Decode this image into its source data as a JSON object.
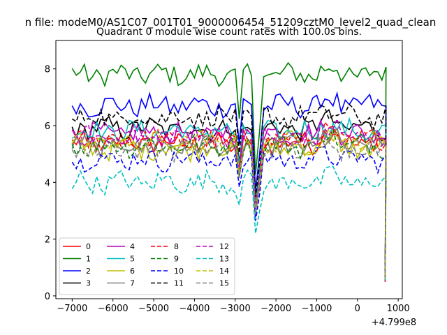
{
  "chart_data": {
    "type": "line",
    "suptitle": "n file: modeM0/AS1C07_001T01_9000006454_51209cztM0_level2_quad_clean",
    "title": "Quadrant 0 module wise count rates with 100.0s bins.",
    "xlabel": "",
    "ylabel": "",
    "x_offset_label": "+4.799e8",
    "xlim": [
      -7400,
      1100
    ],
    "ylim": [
      -0.1,
      9.0
    ],
    "x_ticks": [
      -7000,
      -6000,
      -5000,
      -4000,
      -3000,
      -2000,
      -1000,
      0,
      1000
    ],
    "x_tick_labels": [
      "−7000",
      "−6000",
      "−5000",
      "−4000",
      "−3000",
      "−2000",
      "−1000",
      "0",
      "1000"
    ],
    "y_ticks": [
      0,
      2,
      4,
      6,
      8
    ],
    "y_tick_labels": [
      "0",
      "2",
      "4",
      "6",
      "8"
    ],
    "legend_position": "lower-left",
    "x_start": -7000,
    "x_step": 100,
    "dip_offsets": [
      41,
      45,
      46
    ],
    "series": [
      {
        "name": "0",
        "color": "#ff0000",
        "dash": "solid",
        "base": 5.4
      },
      {
        "name": "1",
        "color": "#008000",
        "dash": "solid",
        "base": 7.8
      },
      {
        "name": "2",
        "color": "#0000ff",
        "dash": "solid",
        "base": 6.7
      },
      {
        "name": "3",
        "color": "#000000",
        "dash": "solid",
        "base": 5.9
      },
      {
        "name": "4",
        "color": "#bf00bf",
        "dash": "solid",
        "base": 5.7
      },
      {
        "name": "5",
        "color": "#00bfbf",
        "dash": "solid",
        "base": 5.8
      },
      {
        "name": "6",
        "color": "#bfbf00",
        "dash": "solid",
        "base": 5.2
      },
      {
        "name": "7",
        "color": "#808080",
        "dash": "solid",
        "base": 5.3
      },
      {
        "name": "8",
        "color": "#ff0000",
        "dash": "dashed",
        "base": 5.5
      },
      {
        "name": "9",
        "color": "#008000",
        "dash": "dashed",
        "base": 5.3
      },
      {
        "name": "10",
        "color": "#0000ff",
        "dash": "dashed",
        "base": 4.8
      },
      {
        "name": "11",
        "color": "#000000",
        "dash": "dashed",
        "base": 6.3
      },
      {
        "name": "12",
        "color": "#bf00bf",
        "dash": "dashed",
        "base": 5.6
      },
      {
        "name": "13",
        "color": "#00bfbf",
        "dash": "dashed",
        "base": 4.0
      },
      {
        "name": "14",
        "color": "#bfbf00",
        "dash": "dashed",
        "base": 5.4
      },
      {
        "name": "15",
        "color": "#808080",
        "dash": "dashed",
        "base": 5.2
      }
    ]
  }
}
